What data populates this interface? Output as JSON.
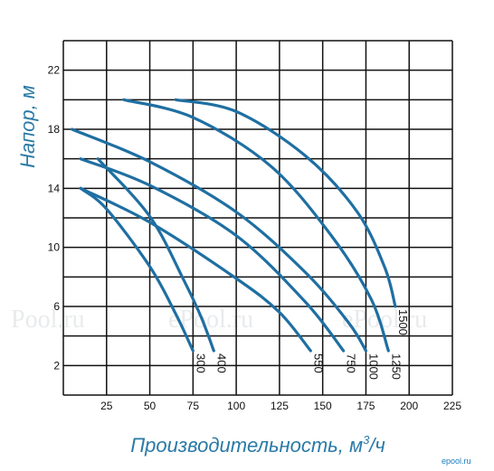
{
  "chart_data": {
    "type": "line",
    "xlabel": "Производительность, м",
    "xlabel_unit_sup": "3",
    "xlabel_tail": "/ч",
    "ylabel": "Напор, м",
    "xlim": [
      0,
      225
    ],
    "ylim": [
      0,
      24
    ],
    "x_ticks": [
      "25",
      "50",
      "75",
      "100",
      "125",
      "150",
      "175",
      "200",
      "225"
    ],
    "y_ticks": [
      "2",
      "6",
      "10",
      "14",
      "18",
      "22"
    ],
    "grid": true,
    "series": [
      {
        "name": "300",
        "label_at": 75,
        "points": [
          [
            10,
            14
          ],
          [
            25,
            12.6
          ],
          [
            50,
            8.7
          ],
          [
            65,
            5.5
          ],
          [
            75,
            3
          ]
        ]
      },
      {
        "name": "400",
        "label_at": 87,
        "points": [
          [
            20,
            16
          ],
          [
            50,
            12.1
          ],
          [
            70,
            7.7
          ],
          [
            80,
            5.2
          ],
          [
            87,
            3
          ]
        ]
      },
      {
        "name": "550",
        "label_at": 143,
        "points": [
          [
            10,
            14
          ],
          [
            50,
            11.7
          ],
          [
            100,
            7.9
          ],
          [
            125,
            5.6
          ],
          [
            143,
            3
          ]
        ]
      },
      {
        "name": "750",
        "label_at": 162,
        "points": [
          [
            10,
            16
          ],
          [
            50,
            14.2
          ],
          [
            100,
            10.8
          ],
          [
            140,
            6.3
          ],
          [
            162,
            3
          ]
        ]
      },
      {
        "name": "1000",
        "label_at": 175,
        "points": [
          [
            5,
            18
          ],
          [
            50,
            15.8
          ],
          [
            100,
            12.4
          ],
          [
            140,
            8.3
          ],
          [
            165,
            4.9
          ],
          [
            175,
            3
          ]
        ]
      },
      {
        "name": "1250",
        "label_at": 188,
        "points": [
          [
            35,
            20
          ],
          [
            75,
            18.8
          ],
          [
            120,
            15.5
          ],
          [
            155,
            10.8
          ],
          [
            178,
            6.5
          ],
          [
            188,
            3
          ]
        ]
      },
      {
        "name": "1500",
        "label_at": 192,
        "points": [
          [
            65,
            20
          ],
          [
            100,
            19.2
          ],
          [
            140,
            16.2
          ],
          [
            170,
            12.4
          ],
          [
            186,
            8.6
          ],
          [
            192,
            6
          ]
        ]
      }
    ]
  },
  "watermarks": [
    "Pool.ru",
    "ePool.ru",
    "ePool.ru"
  ],
  "brand_text": "epool.ru"
}
